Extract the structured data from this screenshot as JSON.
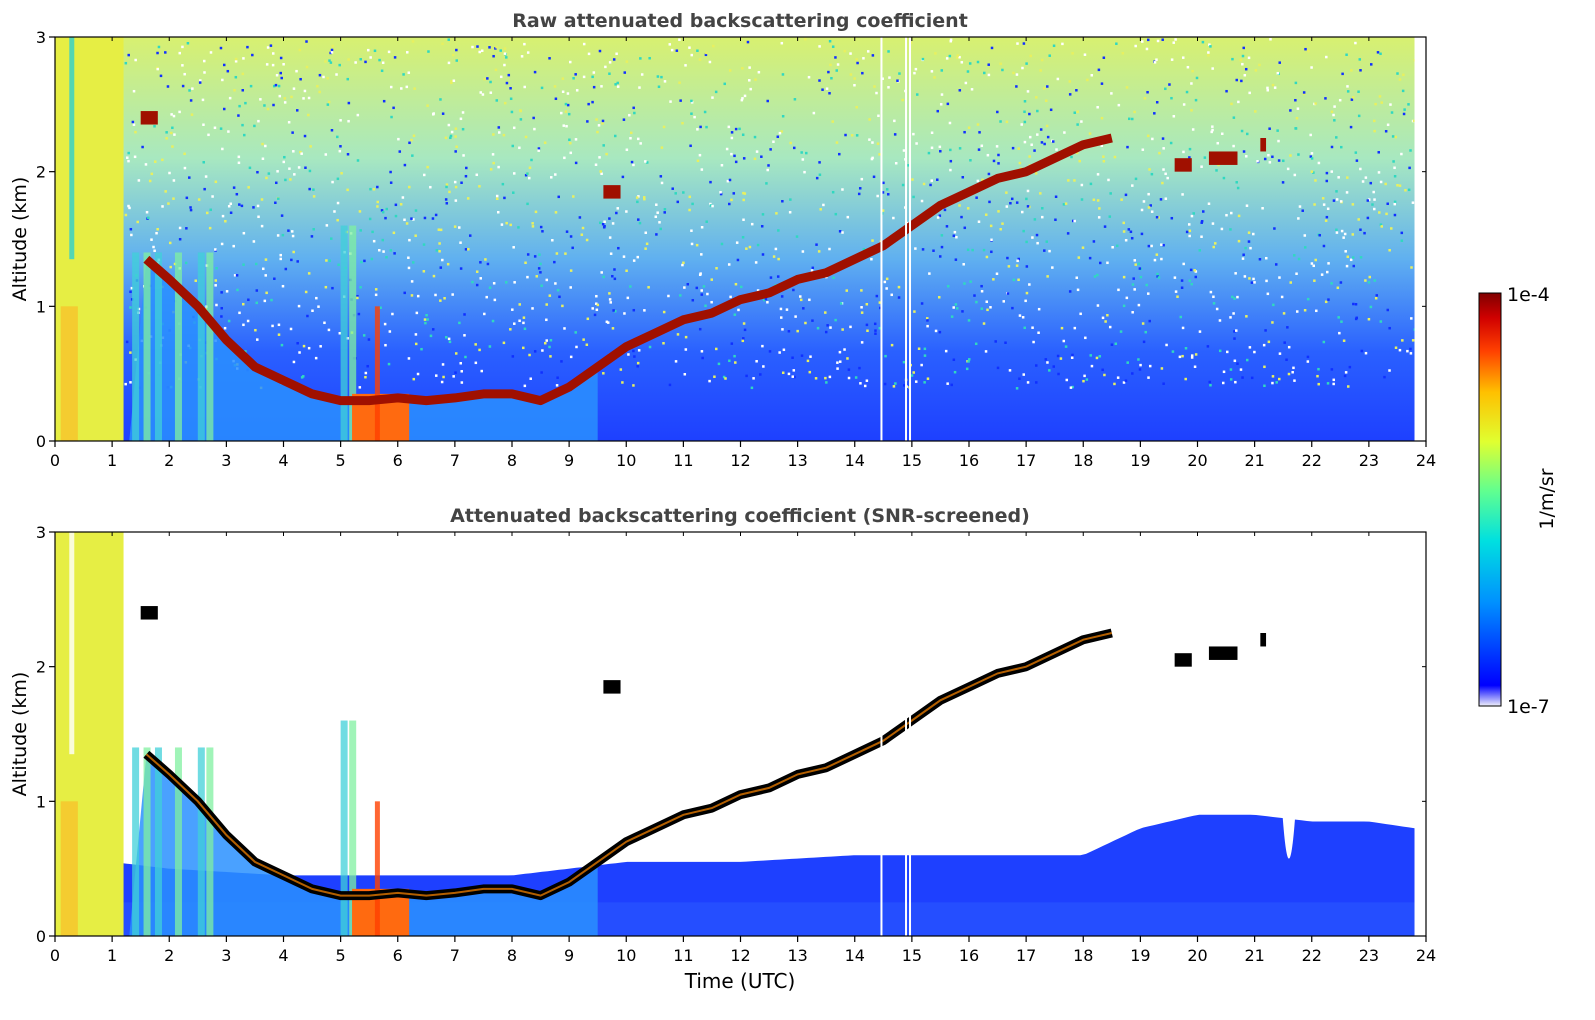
{
  "chart_data": [
    {
      "type": "heatmap",
      "title": "Raw attenuated backscattering coefficient",
      "xlabel": "",
      "ylabel": "Altitude (km)",
      "xlim": [
        0,
        24
      ],
      "ylim": [
        0,
        3
      ],
      "x_ticks": [
        "0",
        "1",
        "2",
        "3",
        "4",
        "5",
        "6",
        "7",
        "8",
        "9",
        "10",
        "11",
        "12",
        "13",
        "14",
        "15",
        "16",
        "17",
        "18",
        "19",
        "20",
        "21",
        "22",
        "23",
        "24"
      ],
      "y_ticks": [
        "0",
        "1",
        "2",
        "3"
      ],
      "data_end_time": 23.8,
      "masked": false,
      "boundary_layer_top": {
        "time": [
          1.6,
          2.0,
          2.5,
          3.0,
          3.5,
          4.0,
          4.5,
          5.0,
          5.5,
          6.0,
          6.5,
          7.0,
          7.5,
          8.0,
          8.5,
          9.0,
          9.5,
          10.0,
          10.5,
          11.0,
          11.5,
          12.0,
          12.5,
          13.0,
          13.5,
          14.0,
          14.5,
          15.0,
          15.5,
          16.0,
          16.5,
          17.0,
          17.5,
          18.0,
          18.5
        ],
        "altitude": [
          1.35,
          1.2,
          1.0,
          0.75,
          0.55,
          0.45,
          0.35,
          0.3,
          0.3,
          0.32,
          0.3,
          0.32,
          0.35,
          0.35,
          0.3,
          0.4,
          0.55,
          0.7,
          0.8,
          0.9,
          0.95,
          1.05,
          1.1,
          1.2,
          1.25,
          1.35,
          1.45,
          1.6,
          1.75,
          1.85,
          1.95,
          2.0,
          2.1,
          2.2,
          2.25
        ]
      },
      "cloud_layers": [
        {
          "t0": 1.5,
          "t1": 1.8,
          "alt": 2.4
        },
        {
          "t0": 9.6,
          "t1": 9.9,
          "alt": 1.85
        },
        {
          "t0": 19.6,
          "t1": 19.9,
          "alt": 2.05
        },
        {
          "t0": 20.2,
          "t1": 20.7,
          "alt": 2.1
        },
        {
          "t0": 21.1,
          "t1": 21.2,
          "alt": 2.2
        }
      ]
    },
    {
      "type": "heatmap",
      "title": "Attenuated backscattering coefficient (SNR-screened)",
      "xlabel": "Time (UTC)",
      "ylabel": "Altitude (km)",
      "xlim": [
        0,
        24
      ],
      "ylim": [
        0,
        3
      ],
      "x_ticks": [
        "0",
        "1",
        "2",
        "3",
        "4",
        "5",
        "6",
        "7",
        "8",
        "9",
        "10",
        "11",
        "12",
        "13",
        "14",
        "15",
        "16",
        "17",
        "18",
        "19",
        "20",
        "21",
        "22",
        "23",
        "24"
      ],
      "y_ticks": [
        "0",
        "1",
        "2",
        "3"
      ],
      "data_end_time": 23.8,
      "masked": true,
      "noise_floor_top": {
        "time": [
          0,
          2,
          4,
          6,
          8,
          10,
          12,
          14,
          16,
          18,
          19,
          20,
          21,
          22,
          23,
          23.8
        ],
        "altitude": [
          0.6,
          0.5,
          0.45,
          0.45,
          0.45,
          0.55,
          0.55,
          0.6,
          0.6,
          0.6,
          0.8,
          0.9,
          0.9,
          0.85,
          0.85,
          0.8
        ]
      },
      "gap": {
        "time": 21.6,
        "altitude_bottom": 0.4
      },
      "boundary_layer_top": {
        "time": [
          1.6,
          2.0,
          2.5,
          3.0,
          3.5,
          4.0,
          4.5,
          5.0,
          5.5,
          6.0,
          6.5,
          7.0,
          7.5,
          8.0,
          8.5,
          9.0,
          9.5,
          10.0,
          10.5,
          11.0,
          11.5,
          12.0,
          12.5,
          13.0,
          13.5,
          14.0,
          14.5,
          15.0,
          15.5,
          16.0,
          16.5,
          17.0,
          17.5,
          18.0,
          18.5
        ],
        "altitude": [
          1.35,
          1.2,
          1.0,
          0.75,
          0.55,
          0.45,
          0.35,
          0.3,
          0.3,
          0.32,
          0.3,
          0.32,
          0.35,
          0.35,
          0.3,
          0.4,
          0.55,
          0.7,
          0.8,
          0.9,
          0.95,
          1.05,
          1.1,
          1.2,
          1.25,
          1.35,
          1.45,
          1.6,
          1.75,
          1.85,
          1.95,
          2.0,
          2.1,
          2.2,
          2.25
        ]
      },
      "cloud_layers": [
        {
          "t0": 1.5,
          "t1": 1.8,
          "alt": 2.4
        },
        {
          "t0": 9.6,
          "t1": 9.9,
          "alt": 1.85
        },
        {
          "t0": 19.6,
          "t1": 19.9,
          "alt": 2.05
        },
        {
          "t0": 20.2,
          "t1": 20.7,
          "alt": 2.1
        },
        {
          "t0": 21.1,
          "t1": 21.2,
          "alt": 2.2
        }
      ]
    }
  ],
  "colorbar": {
    "label": "1/m/sr",
    "max_label": "1e-4",
    "min_label": "1e-7",
    "colormap": [
      "#f0f0fa",
      "#0000ff",
      "#0090ff",
      "#00e0e0",
      "#60ff90",
      "#e0ff30",
      "#ffc000",
      "#ff4000",
      "#d00000",
      "#800000"
    ]
  },
  "colors": {
    "low_backscatter": "#1e3cff",
    "noise": "#2ad0c8",
    "aerosol": "#e8f044",
    "cloud": "#a01000",
    "screened_cloud_edge": "#000000"
  }
}
